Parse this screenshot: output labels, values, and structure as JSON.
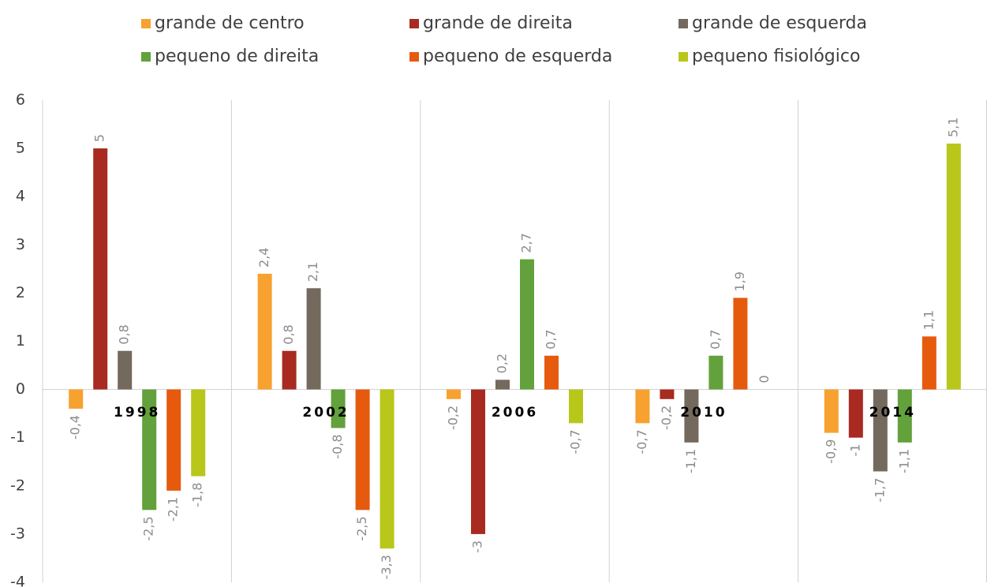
{
  "chart_data": {
    "type": "bar",
    "categories": [
      "1998",
      "2002",
      "2006",
      "2010",
      "2014"
    ],
    "series": [
      {
        "name": "grande de centro",
        "color": "#f7a130",
        "values": [
          -0.4,
          2.4,
          -0.2,
          -0.7,
          -0.9
        ],
        "value_labels": [
          "-0,4",
          "2,4",
          "-0,2",
          "-0,7",
          "-0,9"
        ]
      },
      {
        "name": "grande de direita",
        "color": "#a82a20",
        "values": [
          5,
          0.8,
          -3,
          -0.2,
          -1
        ],
        "value_labels": [
          "5",
          "0,8",
          "-3",
          "-0,2",
          "-1"
        ]
      },
      {
        "name": "grande de esquerda",
        "color": "#73695c",
        "values": [
          0.8,
          2.1,
          0.2,
          -1.1,
          -1.7
        ],
        "value_labels": [
          "0,8",
          "2,1",
          "0,2",
          "-1,1",
          "-1,7"
        ]
      },
      {
        "name": "pequeno de direita",
        "color": "#62a13b",
        "values": [
          -2.5,
          -0.8,
          2.7,
          0.7,
          -1.1
        ],
        "value_labels": [
          "-2,5",
          "-0,8",
          "2,7",
          "0,7",
          "-1,1"
        ]
      },
      {
        "name": "pequeno de esquerda",
        "color": "#e65a0e",
        "values": [
          -2.1,
          -2.5,
          0.7,
          1.9,
          1.1
        ],
        "value_labels": [
          "-2,1",
          "-2,5",
          "0,7",
          "1,9",
          "1,1"
        ]
      },
      {
        "name": "pequeno fisiológico",
        "color": "#b8c71a",
        "values": [
          -1.8,
          -3.3,
          -0.7,
          0,
          5.1
        ],
        "value_labels": [
          "-1,8",
          "-3,3",
          "-0,7",
          "0",
          "5,1"
        ]
      }
    ],
    "ylim": [
      -4,
      6
    ],
    "yticks": [
      6,
      5,
      4,
      3,
      2,
      1,
      0,
      -1,
      -2,
      -3,
      -4
    ],
    "legend": "top"
  }
}
